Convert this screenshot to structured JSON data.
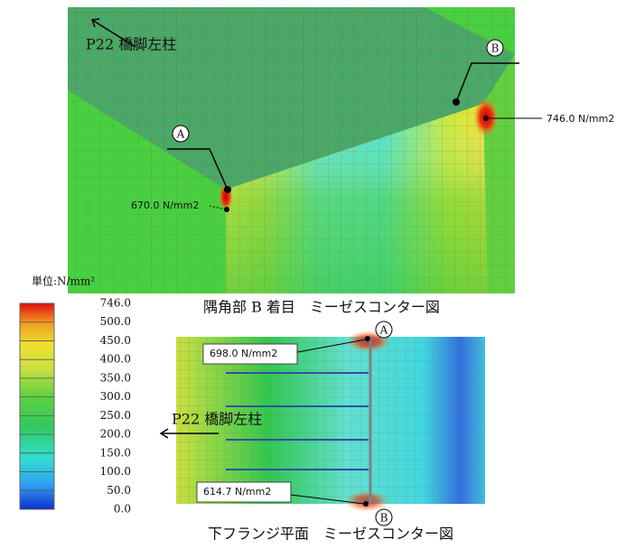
{
  "top_figure": {
    "caption": "隅角部 B 着目　ミーゼスコンター図",
    "direction_label": "P22 橋脚左柱",
    "marker_a": "A",
    "marker_b": "B",
    "value_a": "670.0 N/mm2",
    "value_b": "746.0 N/mm2"
  },
  "bottom_figure": {
    "caption": "下フランジ平面　ミーゼスコンター図",
    "direction_label": "P22 橋脚左柱",
    "marker_a": "A",
    "marker_b": "B",
    "value_a": "698.0 N/mm2",
    "value_b": "614.7 N/mm2"
  },
  "legend": {
    "unit": "単位:N/mm²",
    "labels": [
      "746.0",
      "500.0",
      "450.0",
      "400.0",
      "350.0",
      "300.0",
      "250.0",
      "200.0",
      "150.0",
      "100.0",
      "50.0",
      "0.0"
    ]
  }
}
